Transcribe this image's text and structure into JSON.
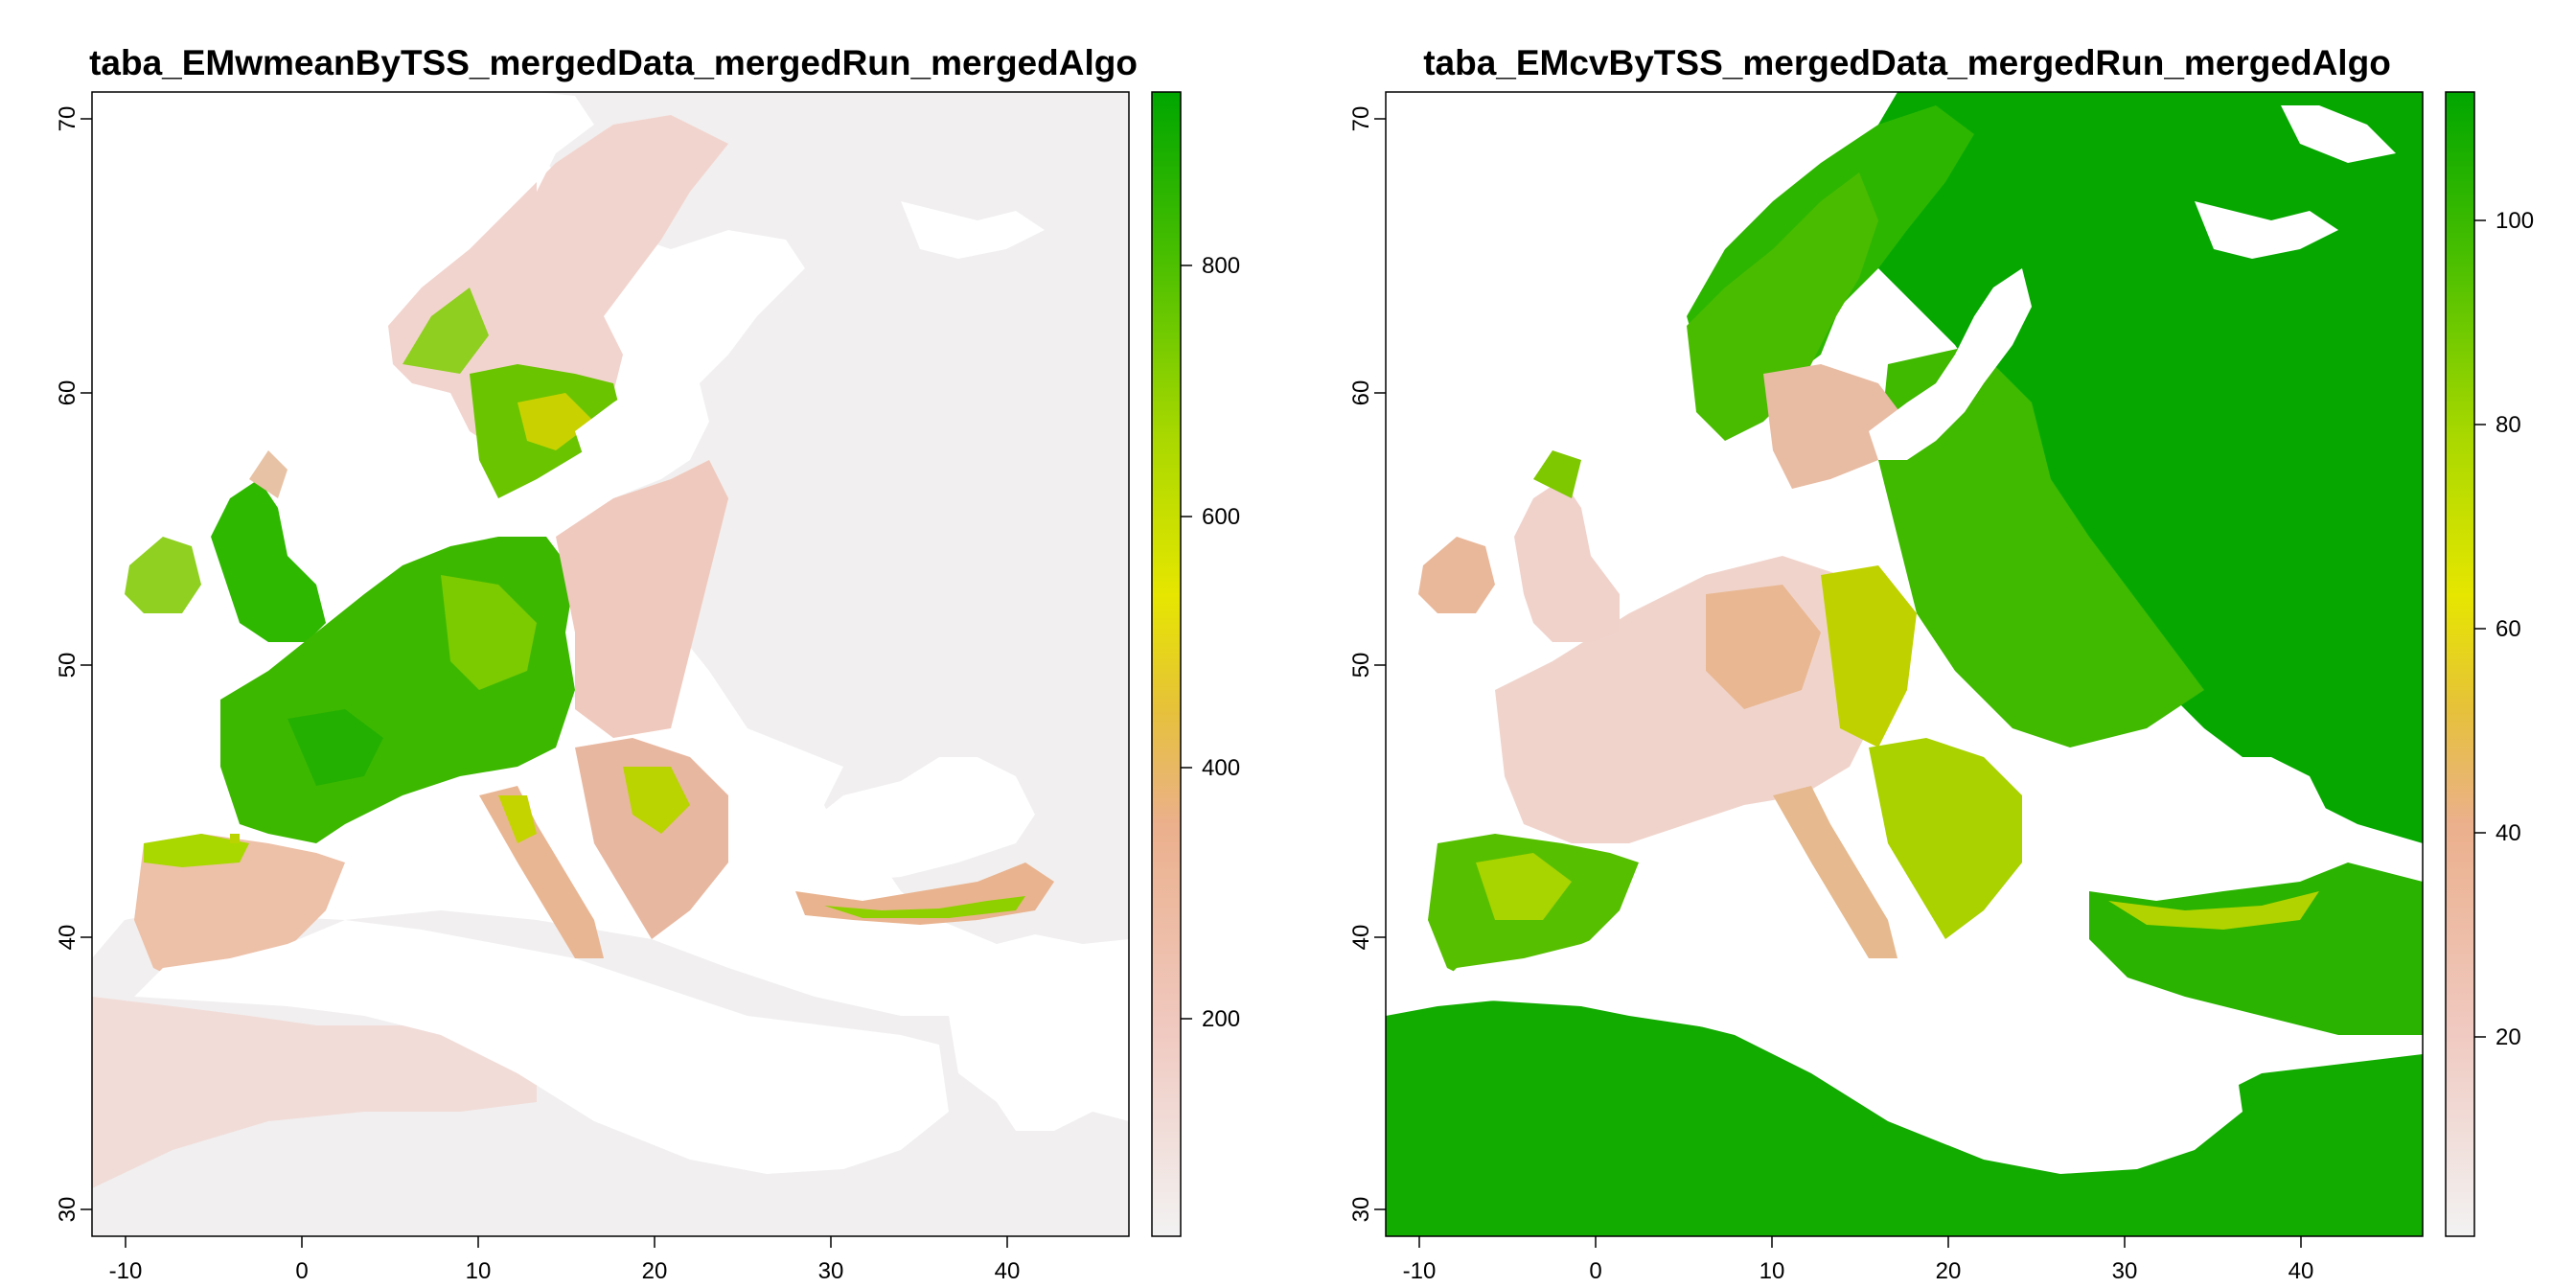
{
  "maps": [
    {
      "title": "taba_EMwmeanByTSS_mergedData_mergedRun_mergedAlgo",
      "x_ticks": [
        "-10",
        "0",
        "10",
        "20",
        "30",
        "40"
      ],
      "y_ticks": [
        "30",
        "40",
        "50",
        "60",
        "70"
      ],
      "legend_ticks": [
        "200",
        "400",
        "600",
        "800"
      ],
      "variant": "mean"
    },
    {
      "title": "taba_EMcvByTSS_mergedData_mergedRun_mergedAlgo",
      "x_ticks": [
        "-10",
        "0",
        "10",
        "20",
        "30",
        "40"
      ],
      "y_ticks": [
        "30",
        "40",
        "50",
        "60",
        "70"
      ],
      "legend_ticks": [
        "20",
        "40",
        "60",
        "80",
        "100"
      ],
      "variant": "cv"
    }
  ],
  "colors": {
    "ramp": [
      "#f2f2f2",
      "#f0c9c0",
      "#ebb08c",
      "#e6c13a",
      "#e6e600",
      "#a8d800",
      "#4cc000",
      "#00a600"
    ],
    "background_no_data": "#ffffff",
    "mean_land_low": "#f0eeee"
  }
}
